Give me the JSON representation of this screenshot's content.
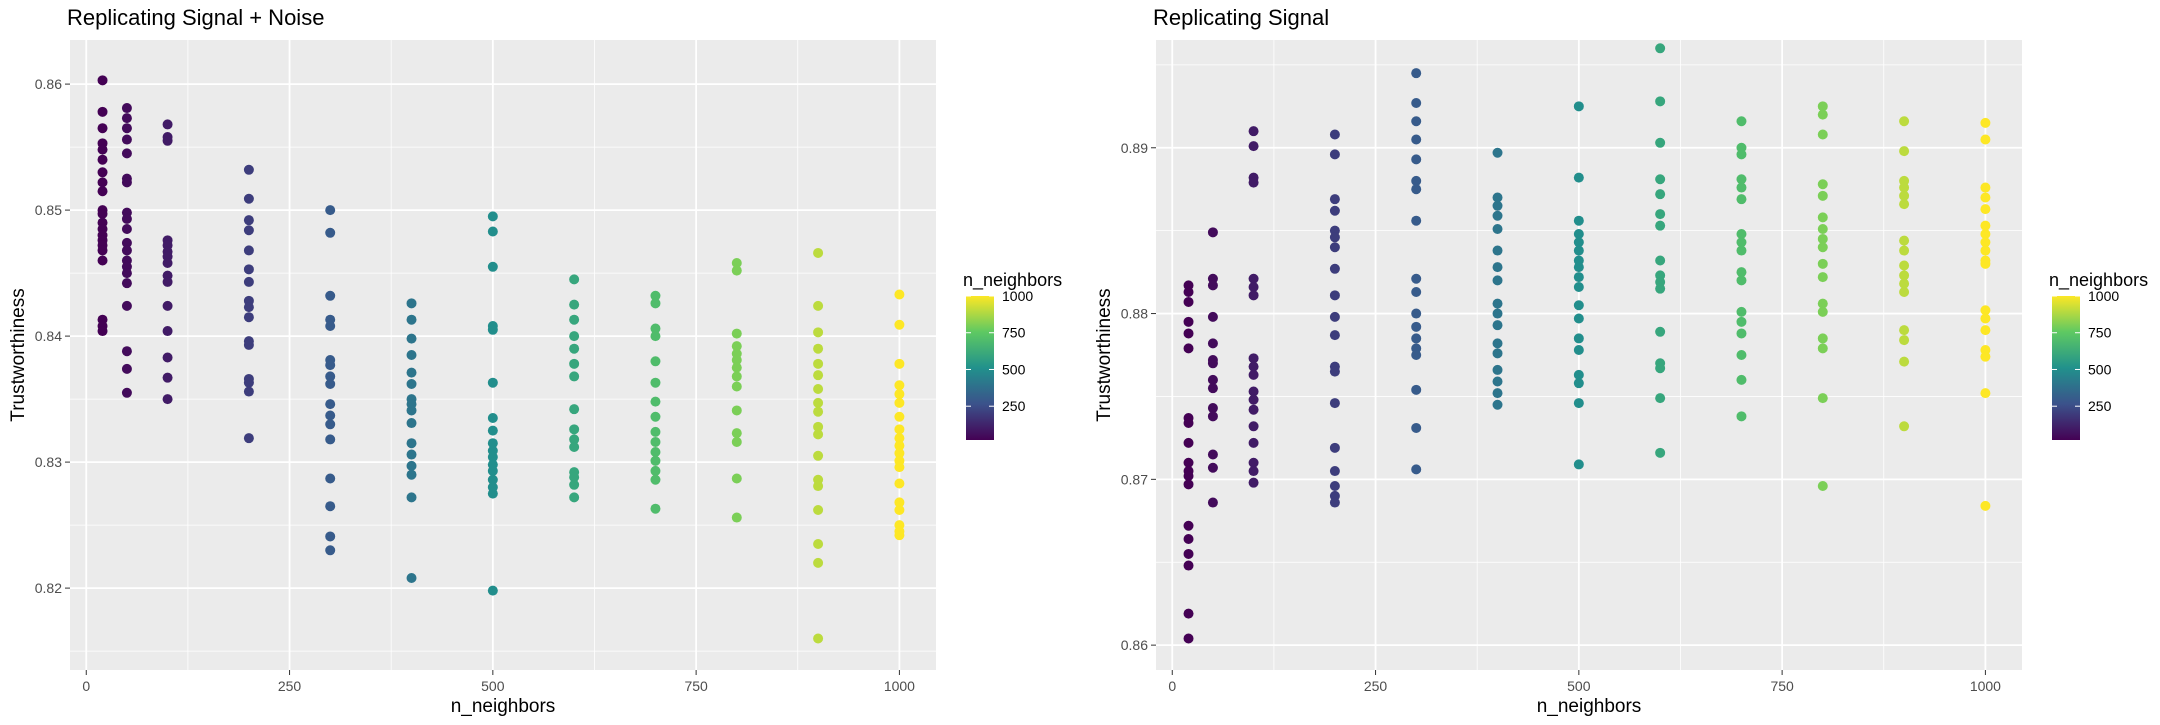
{
  "chart_data": [
    {
      "type": "scatter",
      "title": "Replicating Signal + Noise",
      "xlabel": "n_neighbors",
      "ylabel": "Trustworthiness",
      "xlim": [
        -20,
        1045
      ],
      "ylim": [
        0.8135,
        0.8635
      ],
      "xticks": [
        0,
        250,
        500,
        750,
        1000
      ],
      "yticks": [
        0.82,
        0.83,
        0.84,
        0.85,
        0.86
      ],
      "ytick_labels": [
        "0.82",
        "0.83",
        "0.84",
        "0.85",
        "0.86"
      ],
      "grid": true,
      "legend": {
        "title": "n_neighbors",
        "labels": [
          "1000",
          "750",
          "500",
          "250"
        ],
        "values": [
          1000,
          750,
          500,
          250
        ],
        "placement": "right"
      },
      "points": [
        {
          "x": 20,
          "y": [
            0.8603,
            0.8578,
            0.8565,
            0.8553,
            0.8548,
            0.854,
            0.853,
            0.8522,
            0.8515,
            0.85,
            0.8497,
            0.849,
            0.8485,
            0.848,
            0.8476,
            0.8472,
            0.8468,
            0.846,
            0.8413,
            0.8408,
            0.8404
          ]
        },
        {
          "x": 50,
          "y": [
            0.8581,
            0.8573,
            0.8565,
            0.8556,
            0.8545,
            0.8525,
            0.8522,
            0.8498,
            0.8493,
            0.8485,
            0.8474,
            0.8468,
            0.846,
            0.8455,
            0.845,
            0.8442,
            0.8424,
            0.8388,
            0.8374,
            0.8355
          ]
        },
        {
          "x": 100,
          "y": [
            0.8568,
            0.8558,
            0.8555,
            0.8476,
            0.8472,
            0.8467,
            0.8463,
            0.8458,
            0.8448,
            0.8443,
            0.8424,
            0.8404,
            0.8383,
            0.8367,
            0.835
          ]
        },
        {
          "x": 200,
          "y": [
            0.8532,
            0.8509,
            0.8492,
            0.8484,
            0.8468,
            0.8453,
            0.8443,
            0.8428,
            0.8423,
            0.8415,
            0.8396,
            0.8393,
            0.8366,
            0.8363,
            0.8356,
            0.8319
          ]
        },
        {
          "x": 300,
          "y": [
            0.85,
            0.8482,
            0.8432,
            0.8413,
            0.8408,
            0.8381,
            0.8377,
            0.8368,
            0.8362,
            0.8346,
            0.8337,
            0.833,
            0.8318,
            0.8287,
            0.8265,
            0.8241,
            0.823
          ]
        },
        {
          "x": 400,
          "y": [
            0.8426,
            0.8413,
            0.8398,
            0.8385,
            0.8371,
            0.8362,
            0.835,
            0.8346,
            0.8341,
            0.8331,
            0.8315,
            0.8306,
            0.8297,
            0.829,
            0.8272,
            0.8208
          ]
        },
        {
          "x": 500,
          "y": [
            0.8495,
            0.8483,
            0.8455,
            0.8408,
            0.8405,
            0.8363,
            0.8335,
            0.8325,
            0.8315,
            0.8309,
            0.8304,
            0.8298,
            0.8293,
            0.8286,
            0.828,
            0.8275,
            0.8198
          ]
        },
        {
          "x": 600,
          "y": [
            0.8445,
            0.8425,
            0.8413,
            0.84,
            0.839,
            0.8378,
            0.8368,
            0.8342,
            0.8326,
            0.8318,
            0.8312,
            0.8292,
            0.8288,
            0.8282,
            0.8272
          ]
        },
        {
          "x": 700,
          "y": [
            0.8432,
            0.8426,
            0.8406,
            0.84,
            0.838,
            0.8363,
            0.8348,
            0.8336,
            0.8324,
            0.8316,
            0.8308,
            0.8301,
            0.8293,
            0.8286,
            0.8263
          ]
        },
        {
          "x": 800,
          "y": [
            0.8458,
            0.8452,
            0.8402,
            0.8392,
            0.8386,
            0.8381,
            0.8375,
            0.8368,
            0.836,
            0.8341,
            0.8323,
            0.8316,
            0.8287,
            0.8256
          ]
        },
        {
          "x": 900,
          "y": [
            0.8466,
            0.8424,
            0.8403,
            0.839,
            0.8378,
            0.8369,
            0.8358,
            0.8347,
            0.834,
            0.8328,
            0.8322,
            0.8305,
            0.8286,
            0.8281,
            0.8262,
            0.8235,
            0.822,
            0.816
          ]
        },
        {
          "x": 1000,
          "y": [
            0.8433,
            0.8409,
            0.8378,
            0.8361,
            0.8354,
            0.8347,
            0.8336,
            0.8326,
            0.8319,
            0.8313,
            0.8307,
            0.8301,
            0.8296,
            0.8283,
            0.8268,
            0.8262,
            0.825,
            0.8245,
            0.8242
          ]
        }
      ]
    },
    {
      "type": "scatter",
      "title": "Replicating Signal",
      "xlabel": "n_neighbors",
      "ylabel": "Trustworthiness",
      "xlim": [
        -20,
        1045
      ],
      "ylim": [
        0.8585,
        0.8965
      ],
      "xticks": [
        0,
        250,
        500,
        750,
        1000
      ],
      "yticks": [
        0.86,
        0.87,
        0.88,
        0.89
      ],
      "ytick_labels": [
        "0.86",
        "0.87",
        "0.88",
        "0.89"
      ],
      "grid": true,
      "legend": {
        "title": "n_neighbors",
        "labels": [
          "1000",
          "750",
          "500",
          "250"
        ],
        "values": [
          1000,
          750,
          500,
          250
        ],
        "placement": "right"
      },
      "points": [
        {
          "x": 20,
          "y": [
            0.8817,
            0.8813,
            0.8807,
            0.8795,
            0.8788,
            0.8779,
            0.8737,
            0.8734,
            0.8722,
            0.871,
            0.8705,
            0.8702,
            0.8697,
            0.8672,
            0.8664,
            0.8655,
            0.8648,
            0.8619,
            0.8604
          ]
        },
        {
          "x": 50,
          "y": [
            0.8849,
            0.8821,
            0.8817,
            0.8798,
            0.8782,
            0.8772,
            0.877,
            0.876,
            0.8755,
            0.8743,
            0.8738,
            0.8715,
            0.8707,
            0.8686
          ]
        },
        {
          "x": 100,
          "y": [
            0.891,
            0.8901,
            0.8882,
            0.8879,
            0.8821,
            0.8816,
            0.8811,
            0.8773,
            0.8768,
            0.8763,
            0.8753,
            0.8748,
            0.8742,
            0.8732,
            0.8722,
            0.871,
            0.8705,
            0.8698
          ]
        },
        {
          "x": 200,
          "y": [
            0.8908,
            0.8896,
            0.8869,
            0.8862,
            0.885,
            0.8846,
            0.884,
            0.8827,
            0.8811,
            0.8798,
            0.8787,
            0.8768,
            0.8765,
            0.8746,
            0.8719,
            0.8705,
            0.8696,
            0.869,
            0.8686
          ]
        },
        {
          "x": 300,
          "y": [
            0.8945,
            0.8927,
            0.8916,
            0.8905,
            0.8893,
            0.888,
            0.8875,
            0.8856,
            0.8821,
            0.8813,
            0.88,
            0.8792,
            0.8785,
            0.8779,
            0.8775,
            0.8754,
            0.8731,
            0.8706
          ]
        },
        {
          "x": 400,
          "y": [
            0.8897,
            0.887,
            0.8865,
            0.8859,
            0.8851,
            0.8838,
            0.8828,
            0.882,
            0.8806,
            0.88,
            0.8793,
            0.8782,
            0.8776,
            0.8766,
            0.8759,
            0.8752,
            0.8745
          ]
        },
        {
          "x": 500,
          "y": [
            0.8925,
            0.8882,
            0.8856,
            0.8848,
            0.8843,
            0.8838,
            0.8832,
            0.8828,
            0.8822,
            0.8816,
            0.8805,
            0.8797,
            0.8785,
            0.8778,
            0.8763,
            0.8758,
            0.8746,
            0.8709
          ]
        },
        {
          "x": 600,
          "y": [
            0.896,
            0.8928,
            0.8903,
            0.8881,
            0.8872,
            0.886,
            0.8853,
            0.8832,
            0.8823,
            0.8819,
            0.8815,
            0.8789,
            0.877,
            0.8767,
            0.8749,
            0.8716
          ]
        },
        {
          "x": 700,
          "y": [
            0.8916,
            0.89,
            0.8896,
            0.8881,
            0.8876,
            0.8869,
            0.8848,
            0.8843,
            0.8838,
            0.8825,
            0.882,
            0.8801,
            0.8795,
            0.8788,
            0.8775,
            0.876,
            0.8738
          ]
        },
        {
          "x": 800,
          "y": [
            0.8925,
            0.892,
            0.8908,
            0.8878,
            0.8871,
            0.8858,
            0.8851,
            0.8845,
            0.884,
            0.883,
            0.8822,
            0.8806,
            0.8801,
            0.8785,
            0.8779,
            0.8749,
            0.8696
          ]
        },
        {
          "x": 900,
          "y": [
            0.8916,
            0.8898,
            0.888,
            0.8876,
            0.8871,
            0.8866,
            0.8844,
            0.8838,
            0.8829,
            0.8823,
            0.8818,
            0.8813,
            0.879,
            0.8784,
            0.8771,
            0.8732
          ]
        },
        {
          "x": 1000,
          "y": [
            0.8915,
            0.8905,
            0.8876,
            0.887,
            0.8863,
            0.8853,
            0.8848,
            0.8843,
            0.8838,
            0.8832,
            0.883,
            0.8802,
            0.8797,
            0.879,
            0.8778,
            0.8774,
            0.8752,
            0.8684
          ]
        }
      ]
    }
  ]
}
